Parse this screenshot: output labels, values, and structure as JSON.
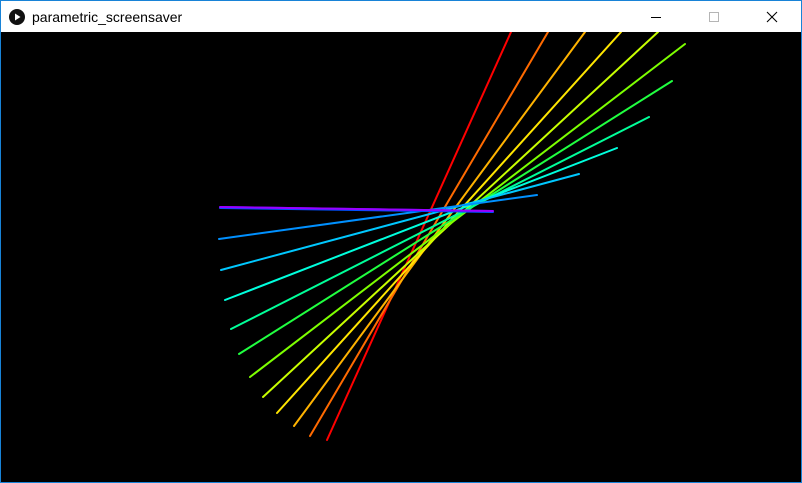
{
  "window": {
    "title": "parametric_screensaver",
    "icons": {
      "app": "play-icon",
      "minimize": "minimize-icon",
      "maximize": "maximize-icon",
      "close": "close-icon"
    }
  },
  "canvas": {
    "background": "#000000",
    "line_colors": [
      "#ff0000",
      "#ff6a00",
      "#ffb300",
      "#ffe600",
      "#c8ff00",
      "#7dff00",
      "#20ff40",
      "#00ff99",
      "#00ffdd",
      "#00c8ff",
      "#0090ff",
      "#0050ff",
      "#3a1cff",
      "#9a00ff"
    ]
  }
}
